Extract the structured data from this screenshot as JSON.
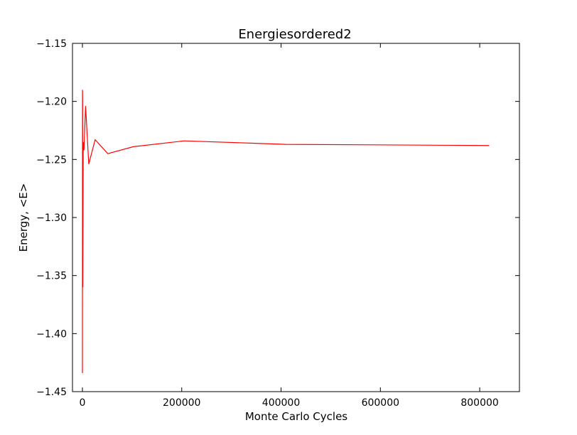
{
  "chart_data": {
    "type": "line",
    "title": "Energiesordered2",
    "xlabel": "Monte Carlo Cycles",
    "ylabel": "Energy, <E>",
    "xlim": [
      -20000,
      880000
    ],
    "ylim": [
      -1.45,
      -1.15
    ],
    "xticks": [
      0,
      200000,
      400000,
      600000,
      800000
    ],
    "xtick_labels": [
      "0",
      "200000",
      "400000",
      "600000",
      "800000"
    ],
    "yticks": [
      -1.45,
      -1.4,
      -1.35,
      -1.3,
      -1.25,
      -1.2,
      -1.15
    ],
    "ytick_labels": [
      "−1.45",
      "−1.40",
      "−1.35",
      "−1.30",
      "−1.25",
      "−1.20",
      "−1.15"
    ],
    "grid": false,
    "series": [
      {
        "color": "#ff0000",
        "x": [
          0,
          200,
          400,
          800,
          1600,
          3200,
          6400,
          12800,
          25600,
          51200,
          102400,
          204800,
          409600,
          819200
        ],
        "y": [
          -1.434,
          -1.19,
          -1.2,
          -1.36,
          -1.235,
          -1.242,
          -1.204,
          -1.254,
          -1.233,
          -1.245,
          -1.239,
          -1.234,
          -1.237,
          -1.238
        ]
      }
    ]
  }
}
